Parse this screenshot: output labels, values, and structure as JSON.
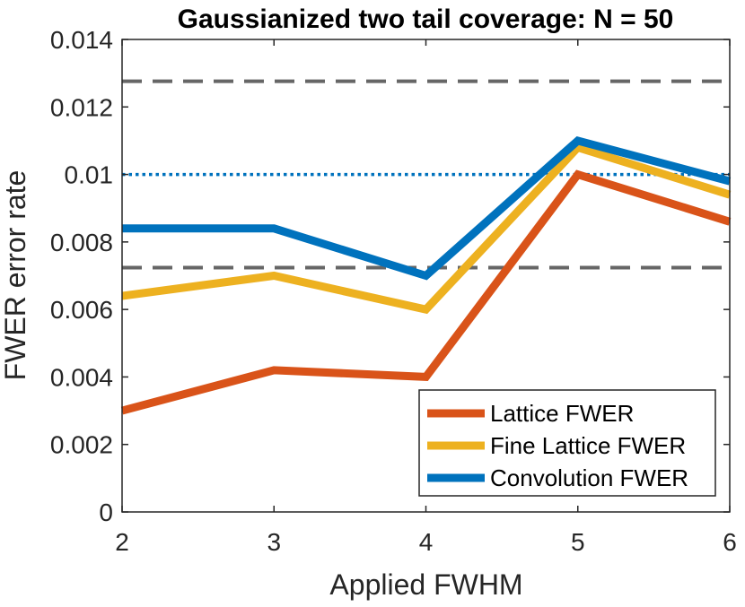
{
  "chart_data": {
    "type": "line",
    "title": "Gaussianized two tail coverage: N = 50",
    "xlabel": "Applied FWHM",
    "ylabel": "FWER error rate",
    "xlim": [
      2,
      6
    ],
    "ylim": [
      0,
      0.014
    ],
    "x_ticks": [
      "2",
      "3",
      "4",
      "5",
      "6"
    ],
    "y_ticks": [
      "0",
      "0.002",
      "0.004",
      "0.006",
      "0.008",
      "0.01",
      "0.012",
      "0.014"
    ],
    "x": [
      2,
      3,
      4,
      5,
      6
    ],
    "series": [
      {
        "name": "Lattice FWER",
        "color": "#D95319",
        "values": [
          0.003,
          0.0042,
          0.004,
          0.01,
          0.0086
        ]
      },
      {
        "name": "Fine Lattice FWER",
        "color": "#EDB120",
        "values": [
          0.0064,
          0.007,
          0.006,
          0.0108,
          0.0094
        ]
      },
      {
        "name": "Convolution FWER",
        "color": "#0072BD",
        "values": [
          0.0084,
          0.0084,
          0.007,
          0.011,
          0.0098
        ]
      }
    ],
    "reference_lines": [
      {
        "style": "dashed",
        "color": "#666666",
        "y": 0.01276
      },
      {
        "style": "dotted",
        "color": "#0072BD",
        "y": 0.01
      },
      {
        "style": "dashed",
        "color": "#666666",
        "y": 0.00724
      }
    ],
    "grid": false,
    "legend_position": "bottom-right"
  }
}
